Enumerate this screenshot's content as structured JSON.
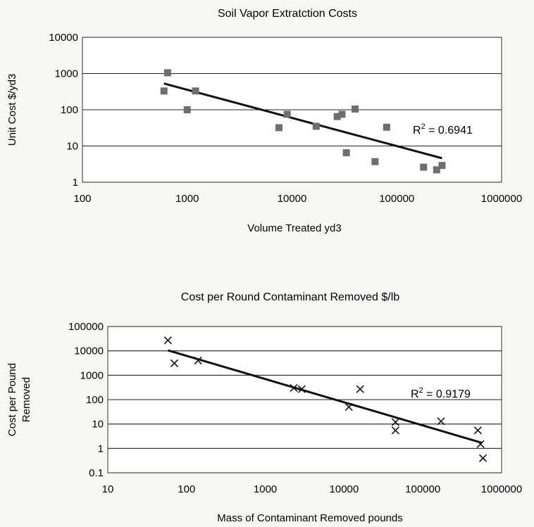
{
  "chart_data": [
    {
      "type": "scatter",
      "title": "Soil Vapor Extratction Costs",
      "xlabel": "Volume Treated yd3",
      "ylabel": "Unit Cost $/yd3",
      "x_scale": "log",
      "y_scale": "log",
      "xlim": [
        100,
        1000000
      ],
      "ylim": [
        1,
        10000
      ],
      "x_ticks": [
        "100",
        "1000",
        "10000",
        "100000",
        "1000000"
      ],
      "y_ticks": [
        "1",
        "10",
        "100",
        "1000",
        "10000"
      ],
      "grid": "horizontal",
      "marker": "square",
      "marker_color": "#6e6e6e",
      "series": [
        {
          "x": [
            600,
            650,
            1000,
            1200,
            7500,
            9000,
            17000,
            27000,
            30000,
            33000,
            40000,
            62000,
            80000,
            180000,
            240000,
            270000
          ],
          "y": [
            330,
            1050,
            100,
            330,
            32,
            75,
            35,
            65,
            75,
            6.5,
            105,
            3.7,
            33,
            2.6,
            2.2,
            2.9
          ]
        }
      ],
      "trendline": {
        "x": [
          600,
          270000
        ],
        "y": [
          530,
          4.6
        ]
      },
      "annotation": {
        "r2_base": "R",
        "r2_exp": "2",
        "r2_value": " = 0.6941"
      }
    },
    {
      "type": "scatter",
      "title": "Cost per Round Contaminant Removed $/lb",
      "xlabel": "Mass of Contaminant Removed pounds",
      "ylabel_line1": "Cost per Pound",
      "ylabel_line2": "Removed",
      "x_scale": "log",
      "y_scale": "log",
      "xlim": [
        10,
        1000000
      ],
      "ylim": [
        0.1,
        100000
      ],
      "x_ticks": [
        "10",
        "100",
        "1000",
        "10000",
        "100000",
        "1000000"
      ],
      "y_ticks": [
        "0.1",
        "1",
        "10",
        "100",
        "1000",
        "10000",
        "100000"
      ],
      "grid": "horizontal",
      "marker": "x",
      "marker_color": "#111111",
      "series": [
        {
          "x": [
            58,
            70,
            140,
            2300,
            2900,
            11500,
            16000,
            45000,
            45000,
            170000,
            500000,
            540000,
            580000
          ],
          "y": [
            27000,
            3100,
            4000,
            300,
            270,
            50,
            270,
            12,
            5.5,
            13,
            5.5,
            1.5,
            0.4
          ]
        }
      ],
      "trendline": {
        "x": [
          58,
          560000
        ],
        "y": [
          10500,
          1.7
        ]
      },
      "annotation": {
        "r2_base": "R",
        "r2_exp": "2",
        "r2_value": " = 0.9179"
      }
    }
  ]
}
